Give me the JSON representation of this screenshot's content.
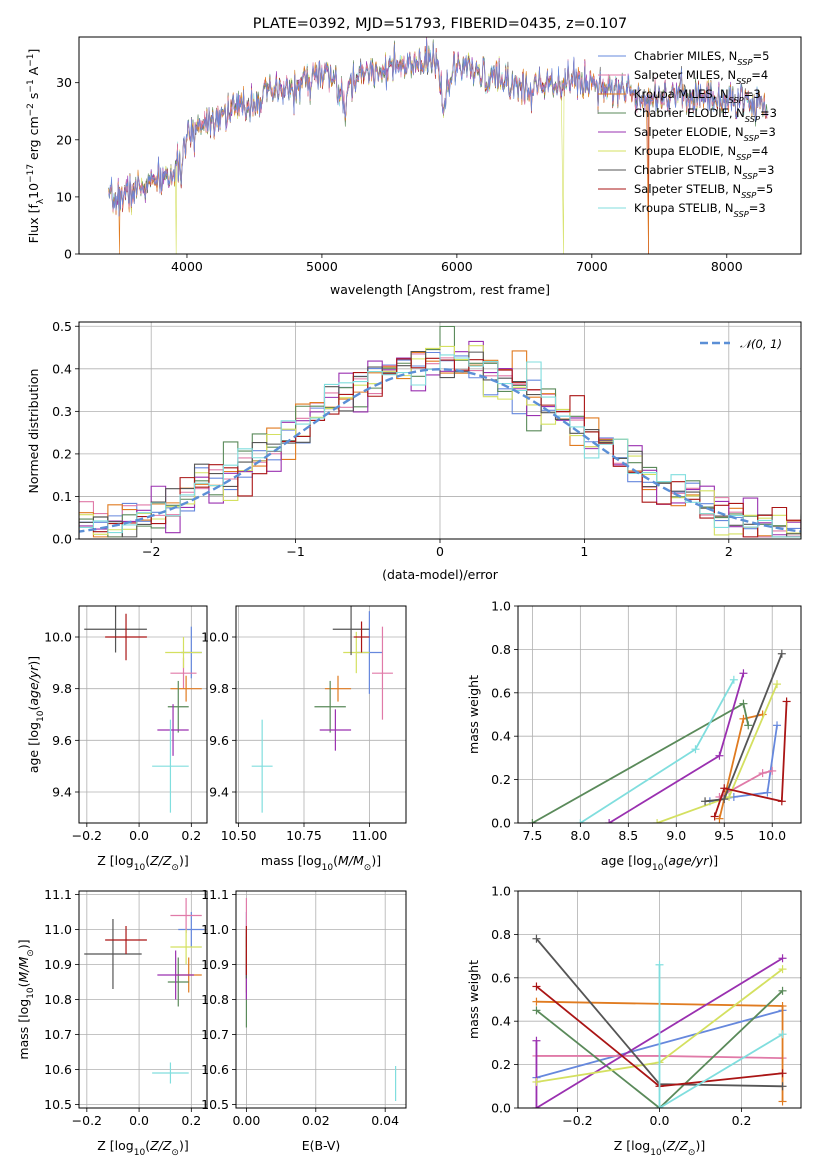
{
  "title": "PLATE=0392, MJD=51793, FIBERID=0435, z=0.107",
  "colors": {
    "Chabrier MILES": "#6688dd",
    "Salpeter MILES": "#e07aa8",
    "Kroupa MILES": "#e07b20",
    "Chabrier ELODIE": "#5a8a5a",
    "Salpeter ELODIE": "#9a30b0",
    "Kroupa ELODIE": "#d4e060",
    "Chabrier STELIB": "#555555",
    "Salpeter STELIB": "#aa1515",
    "Kroupa STELIB": "#80dede",
    "normal_fit": "#5b8fd6"
  },
  "chart_data": [
    {
      "type": "line",
      "name": "spectrum",
      "xlabel": "wavelength [Angstrom, rest frame]",
      "ylabel": "Flux [f_λ 10^-17 erg cm^-2 s^-1 A^-1]",
      "xlim": [
        3200,
        8550
      ],
      "ylim": [
        0,
        38
      ],
      "xticks": [
        4000,
        5000,
        6000,
        7000,
        8000
      ],
      "yticks": [
        0,
        10,
        20,
        30
      ],
      "legend_position": "top-right",
      "series": [
        {
          "name": "Chabrier MILES, N_SSP=5"
        },
        {
          "name": "Salpeter MILES, N_SSP=4"
        },
        {
          "name": "Kroupa MILES, N_SSP=3"
        },
        {
          "name": "Chabrier ELODIE, N_SSP=3"
        },
        {
          "name": "Salpeter ELODIE, N_SSP=3"
        },
        {
          "name": "Kroupa ELODIE, N_SSP=4"
        },
        {
          "name": "Chabrier STELIB, N_SSP=3"
        },
        {
          "name": "Salpeter STELIB, N_SSP=5"
        },
        {
          "name": "Kroupa STELIB, N_SSP=3"
        }
      ],
      "continuum": {
        "x": [
          3420,
          3600,
          3800,
          3900,
          3950,
          4000,
          4100,
          4200,
          4300,
          4400,
          4600,
          4800,
          4900,
          5000,
          5100,
          5170,
          5200,
          5300,
          5500,
          5700,
          5850,
          5900,
          6000,
          6200,
          6400,
          6560,
          6600,
          6800,
          7000,
          7200,
          7400,
          7600,
          7800,
          8000,
          8200,
          8300
        ],
        "y": [
          9,
          11,
          13,
          14,
          15,
          20,
          23,
          24,
          25,
          25.5,
          28,
          29,
          30.5,
          31.5,
          30.5,
          25,
          29,
          32,
          32.5,
          33,
          34,
          27,
          33,
          31,
          30,
          28.5,
          30,
          30.5,
          30,
          29,
          27.5,
          28,
          27.5,
          27,
          26.5,
          26.5
        ]
      }
    },
    {
      "type": "line",
      "name": "residual-histograms",
      "xlabel": "(data-model)/error",
      "ylabel": "Normed distribution",
      "xlim": [
        -2.5,
        2.5
      ],
      "ylim": [
        0,
        0.51
      ],
      "xticks": [
        -2,
        -1,
        0,
        1,
        2
      ],
      "yticks": [
        0.0,
        0.1,
        0.2,
        0.3,
        0.4,
        0.5
      ],
      "legend": "𝒩(0, 1)",
      "legend_position": "top-right",
      "bin_width": 0.1
    },
    {
      "type": "scatter",
      "name": "age-vs-Z",
      "xlabel": "Z [log10(Z/Z⊙)]",
      "ylabel": "age [log10(age/yr)]",
      "xlim": [
        -0.23,
        0.26
      ],
      "ylim": [
        9.28,
        10.12
      ],
      "xticks": [
        -0.2,
        0.0,
        0.2
      ],
      "yticks": [
        9.4,
        9.6,
        9.8,
        10.0
      ],
      "points": [
        {
          "model": "Chabrier MILES",
          "x": 0.2,
          "xerr": 0.04,
          "y": 9.94,
          "yerr": 0.1
        },
        {
          "model": "Salpeter MILES",
          "x": 0.17,
          "xerr": 0.05,
          "y": 9.86,
          "yerr": 0.06
        },
        {
          "model": "Kroupa MILES",
          "x": 0.18,
          "xerr": 0.06,
          "y": 9.8,
          "yerr": 0.05
        },
        {
          "model": "Chabrier ELODIE",
          "x": 0.15,
          "xerr": 0.04,
          "y": 9.73,
          "yerr": 0.1
        },
        {
          "model": "Salpeter ELODIE",
          "x": 0.13,
          "xerr": 0.06,
          "y": 9.64,
          "yerr": 0.1
        },
        {
          "model": "Kroupa ELODIE",
          "x": 0.17,
          "xerr": 0.07,
          "y": 9.94,
          "yerr": 0.06
        },
        {
          "model": "Chabrier STELIB",
          "x": -0.09,
          "xerr": 0.12,
          "y": 10.03,
          "yerr": 0.09
        },
        {
          "model": "Salpeter STELIB",
          "x": -0.05,
          "xerr": 0.08,
          "y": 10.0,
          "yerr": 0.09
        },
        {
          "model": "Kroupa STELIB",
          "x": 0.12,
          "xerr": 0.07,
          "y": 9.5,
          "yerr": 0.18
        }
      ]
    },
    {
      "type": "scatter",
      "name": "age-vs-mass",
      "xlabel": "mass [log10(M/M⊙)]",
      "ylabel": "",
      "xlim": [
        10.49,
        11.14
      ],
      "ylim": [
        9.28,
        10.12
      ],
      "xticks": [
        10.5,
        10.75,
        11.0
      ],
      "xticklabels": [
        "10.50",
        "10.75",
        "11.00"
      ],
      "yticks": [
        9.4,
        9.6,
        9.8,
        10.0
      ],
      "points": [
        {
          "model": "Chabrier MILES",
          "x": 11.0,
          "xerr": 0.05,
          "y": 9.94,
          "yerr": 0.16
        },
        {
          "model": "Salpeter MILES",
          "x": 11.05,
          "xerr": 0.04,
          "y": 9.86,
          "yerr": 0.18
        },
        {
          "model": "Kroupa MILES",
          "x": 10.88,
          "xerr": 0.05,
          "y": 9.8,
          "yerr": 0.05
        },
        {
          "model": "Chabrier ELODIE",
          "x": 10.85,
          "xerr": 0.06,
          "y": 9.73,
          "yerr": 0.1
        },
        {
          "model": "Salpeter ELODIE",
          "x": 10.87,
          "xerr": 0.06,
          "y": 9.64,
          "yerr": 0.08
        },
        {
          "model": "Kroupa ELODIE",
          "x": 10.95,
          "xerr": 0.05,
          "y": 9.94,
          "yerr": 0.08
        },
        {
          "model": "Chabrier STELIB",
          "x": 10.93,
          "xerr": 0.07,
          "y": 10.03,
          "yerr": 0.1
        },
        {
          "model": "Salpeter STELIB",
          "x": 10.97,
          "xerr": 0.03,
          "y": 10.0,
          "yerr": 0.06
        },
        {
          "model": "Kroupa STELIB",
          "x": 10.59,
          "xerr": 0.04,
          "y": 9.5,
          "yerr": 0.18
        }
      ]
    },
    {
      "type": "line",
      "name": "mass-weight-vs-age",
      "xlabel": "age [log10(age/yr)]",
      "ylabel": "mass weight",
      "xlim": [
        7.35,
        10.3
      ],
      "ylim": [
        0,
        1.0
      ],
      "xticks": [
        7.5,
        8.0,
        8.5,
        9.0,
        9.5,
        10.0
      ],
      "yticks": [
        0.0,
        0.2,
        0.4,
        0.6,
        0.8,
        1.0
      ],
      "series": [
        {
          "model": "Chabrier MILES",
          "x": [
            9.35,
            9.6,
            9.95,
            10.05
          ],
          "y": [
            0.1,
            0.12,
            0.14,
            0.45
          ]
        },
        {
          "model": "Salpeter MILES",
          "x": [
            9.45,
            9.9,
            10.0
          ],
          "y": [
            0.12,
            0.23,
            0.24
          ]
        },
        {
          "model": "Kroupa MILES",
          "x": [
            9.45,
            9.7,
            9.9
          ],
          "y": [
            0.02,
            0.48,
            0.5
          ]
        },
        {
          "model": "Chabrier ELODIE",
          "x": [
            7.5,
            9.7,
            9.75
          ],
          "y": [
            0.0,
            0.55,
            0.45
          ]
        },
        {
          "model": "Salpeter ELODIE",
          "x": [
            8.3,
            9.45,
            9.7
          ],
          "y": [
            0.0,
            0.31,
            0.69
          ]
        },
        {
          "model": "Kroupa ELODIE",
          "x": [
            8.8,
            9.55,
            10.05
          ],
          "y": [
            0.0,
            0.12,
            0.64
          ]
        },
        {
          "model": "Chabrier STELIB",
          "x": [
            9.3,
            9.5,
            10.1
          ],
          "y": [
            0.1,
            0.11,
            0.78
          ]
        },
        {
          "model": "Salpeter STELIB",
          "x": [
            9.4,
            9.5,
            10.1,
            10.15
          ],
          "y": [
            0.03,
            0.16,
            0.1,
            0.56
          ]
        },
        {
          "model": "Kroupa STELIB",
          "x": [
            8.0,
            9.2,
            9.6
          ],
          "y": [
            0.0,
            0.34,
            0.66
          ]
        }
      ]
    },
    {
      "type": "scatter",
      "name": "mass-vs-Z",
      "xlabel": "Z [log10(Z/Z⊙)]",
      "ylabel": "mass [log10(M/M⊙)]",
      "xlim": [
        -0.23,
        0.26
      ],
      "ylim": [
        10.49,
        11.11
      ],
      "xticks": [
        -0.2,
        0.0,
        0.2
      ],
      "yticks": [
        10.5,
        10.6,
        10.7,
        10.8,
        10.9,
        11.0,
        11.1
      ],
      "points": [
        {
          "model": "Chabrier MILES",
          "x": 0.2,
          "xerr": 0.05,
          "y": 11.0,
          "yerr": 0.05
        },
        {
          "model": "Salpeter MILES",
          "x": 0.18,
          "xerr": 0.06,
          "y": 11.04,
          "yerr": 0.05
        },
        {
          "model": "Kroupa MILES",
          "x": 0.19,
          "xerr": 0.05,
          "y": 10.87,
          "yerr": 0.05
        },
        {
          "model": "Chabrier ELODIE",
          "x": 0.15,
          "xerr": 0.04,
          "y": 10.85,
          "yerr": 0.07
        },
        {
          "model": "Salpeter ELODIE",
          "x": 0.14,
          "xerr": 0.07,
          "y": 10.87,
          "yerr": 0.07
        },
        {
          "model": "Kroupa ELODIE",
          "x": 0.18,
          "xerr": 0.06,
          "y": 10.95,
          "yerr": 0.05
        },
        {
          "model": "Chabrier STELIB",
          "x": -0.1,
          "xerr": 0.11,
          "y": 10.93,
          "yerr": 0.1
        },
        {
          "model": "Salpeter STELIB",
          "x": -0.05,
          "xerr": 0.08,
          "y": 10.97,
          "yerr": 0.04
        },
        {
          "model": "Kroupa STELIB",
          "x": 0.12,
          "xerr": 0.07,
          "y": 10.59,
          "yerr": 0.03
        }
      ]
    },
    {
      "type": "scatter",
      "name": "mass-vs-ebv",
      "xlabel": "E(B-V)",
      "ylabel": "",
      "xlim": [
        -0.003,
        0.046
      ],
      "ylim": [
        10.49,
        11.11
      ],
      "xticks": [
        0.0,
        0.02,
        0.04
      ],
      "xticklabels": [
        "0.00",
        "0.02",
        "0.04"
      ],
      "yticks": [
        10.5,
        10.6,
        10.7,
        10.8,
        10.9,
        11.0,
        11.1
      ],
      "points": [
        {
          "model": "Chabrier MILES",
          "x": 0.0,
          "y": 11.0,
          "yerr": 0.05
        },
        {
          "model": "Salpeter MILES",
          "x": 0.0,
          "y": 10.99,
          "yerr": 0.1
        },
        {
          "model": "Kroupa MILES",
          "x": 0.0,
          "y": 10.87,
          "yerr": 0.05
        },
        {
          "model": "Chabrier ELODIE",
          "x": 0.0,
          "y": 10.85,
          "yerr": 0.13
        },
        {
          "model": "Salpeter ELODIE",
          "x": 0.0,
          "y": 10.87,
          "yerr": 0.07
        },
        {
          "model": "Kroupa ELODIE",
          "x": 0.0,
          "y": 10.95,
          "yerr": 0.05
        },
        {
          "model": "Chabrier STELIB",
          "x": 0.0,
          "y": 10.93,
          "yerr": 0.07
        },
        {
          "model": "Salpeter STELIB",
          "x": 0.0,
          "y": 10.94,
          "yerr": 0.07
        },
        {
          "model": "Kroupa STELIB",
          "x": 0.043,
          "y": 10.56,
          "yerr": 0.05
        }
      ]
    },
    {
      "type": "line",
      "name": "mass-weight-vs-Z",
      "xlabel": "Z [log10(Z/Z⊙)]",
      "ylabel": "mass weight",
      "xlim": [
        -0.345,
        0.345
      ],
      "ylim": [
        0,
        1.0
      ],
      "xticks": [
        -0.2,
        0.0,
        0.2
      ],
      "yticks": [
        0.0,
        0.2,
        0.4,
        0.6,
        0.8,
        1.0
      ],
      "series": [
        {
          "model": "Chabrier MILES",
          "x": [
            -0.3,
            0.3
          ],
          "y": [
            0.14,
            0.45
          ]
        },
        {
          "model": "Salpeter MILES",
          "x": [
            -0.3,
            0.0,
            0.3
          ],
          "y": [
            0.24,
            0.24,
            0.23
          ]
        },
        {
          "model": "Kroupa MILES",
          "x": [
            -0.3,
            0.3,
            0.3
          ],
          "y": [
            0.49,
            0.47,
            0.03
          ]
        },
        {
          "model": "Chabrier ELODIE",
          "x": [
            -0.3,
            0.0,
            0.3
          ],
          "y": [
            0.45,
            0.0,
            0.54
          ]
        },
        {
          "model": "Salpeter ELODIE",
          "x": [
            -0.3,
            -0.3,
            0.3
          ],
          "y": [
            0.31,
            0.0,
            0.69
          ]
        },
        {
          "model": "Kroupa ELODIE",
          "x": [
            -0.3,
            0.0,
            0.3
          ],
          "y": [
            0.12,
            0.21,
            0.64
          ]
        },
        {
          "model": "Chabrier STELIB",
          "x": [
            -0.3,
            0.0,
            0.3
          ],
          "y": [
            0.78,
            0.11,
            0.1
          ]
        },
        {
          "model": "Salpeter STELIB",
          "x": [
            -0.3,
            0.0,
            0.3
          ],
          "y": [
            0.56,
            0.1,
            0.16
          ]
        },
        {
          "model": "Kroupa STELIB",
          "x": [
            0.0,
            0.0,
            0.3
          ],
          "y": [
            0.66,
            0.0,
            0.34
          ]
        }
      ]
    }
  ]
}
